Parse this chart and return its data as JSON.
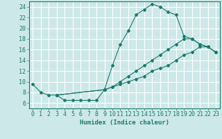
{
  "title": "",
  "xlabel": "Humidex (Indice chaleur)",
  "ylabel": "",
  "background_color": "#cde8e8",
  "grid_color": "#ffffff",
  "line_color": "#1a7a6e",
  "xlim": [
    -0.5,
    23.5
  ],
  "ylim": [
    5.0,
    25.0
  ],
  "xticks": [
    0,
    1,
    2,
    3,
    4,
    5,
    6,
    7,
    8,
    9,
    10,
    11,
    12,
    13,
    14,
    15,
    16,
    17,
    18,
    19,
    20,
    21,
    22,
    23
  ],
  "yticks": [
    6,
    8,
    10,
    12,
    14,
    16,
    18,
    20,
    22,
    24
  ],
  "line1_x": [
    0,
    1,
    2,
    3,
    4,
    5,
    6,
    7,
    8,
    9,
    10,
    11,
    12,
    13,
    14,
    15,
    16,
    17,
    18,
    19,
    20,
    21,
    22,
    23
  ],
  "line1_y": [
    9.5,
    8.0,
    7.5,
    7.5,
    6.5,
    6.5,
    6.5,
    6.5,
    6.5,
    8.5,
    13.0,
    17.0,
    19.5,
    22.5,
    23.5,
    24.5,
    24.0,
    23.0,
    22.5,
    18.5,
    18.0,
    17.0,
    16.5,
    15.5
  ],
  "line2_x": [
    3,
    9,
    10,
    11,
    12,
    13,
    14,
    15,
    16,
    17,
    18,
    19,
    20,
    21,
    22,
    23
  ],
  "line2_y": [
    7.5,
    8.5,
    9.0,
    10.0,
    11.0,
    12.0,
    13.0,
    14.0,
    15.0,
    16.0,
    17.0,
    18.0,
    18.0,
    17.0,
    16.5,
    15.5
  ],
  "line3_x": [
    3,
    9,
    10,
    11,
    12,
    13,
    14,
    15,
    16,
    17,
    18,
    19,
    20,
    21,
    22,
    23
  ],
  "line3_y": [
    7.5,
    8.5,
    9.0,
    9.5,
    10.0,
    10.5,
    11.0,
    12.0,
    12.5,
    13.0,
    14.0,
    15.0,
    15.5,
    16.5,
    16.5,
    15.5
  ],
  "font_size": 6.5,
  "marker": "D",
  "marker_size": 2.0,
  "linewidth": 0.8
}
